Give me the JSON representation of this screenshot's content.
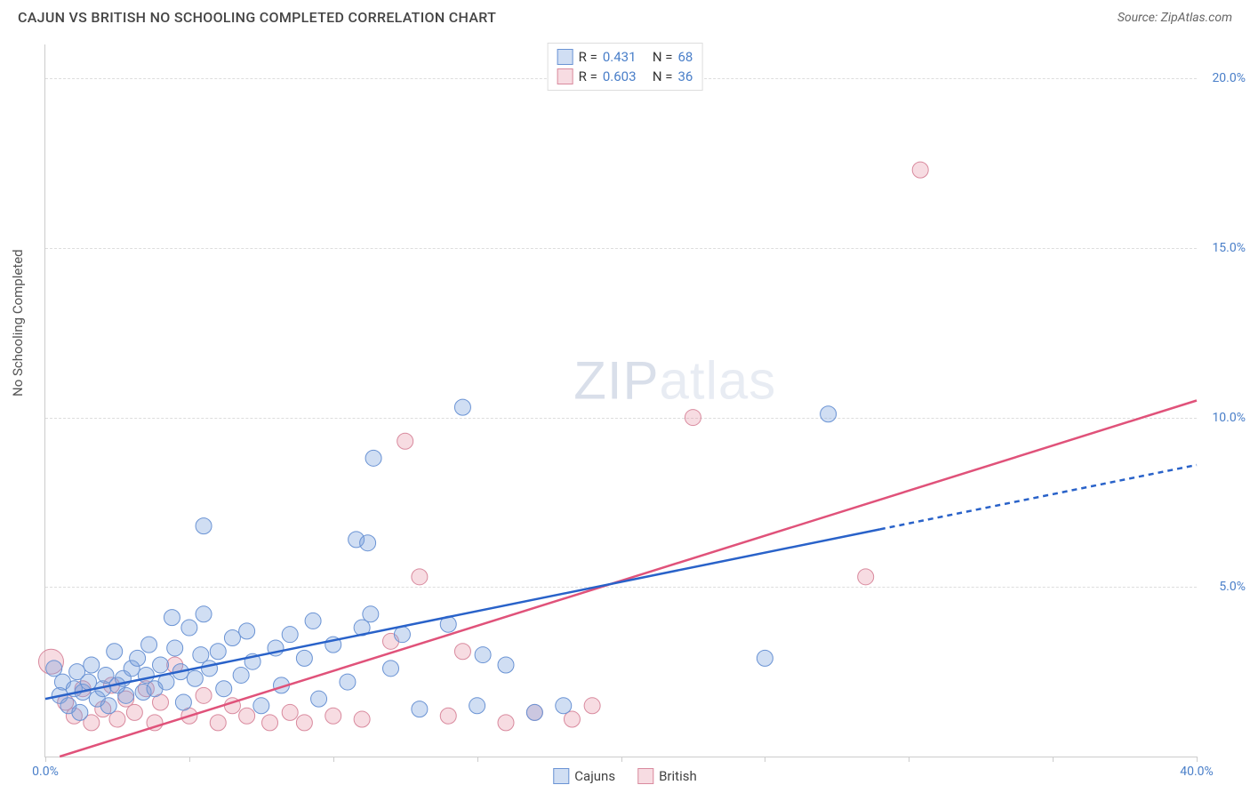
{
  "header": {
    "title": "CAJUN VS BRITISH NO SCHOOLING COMPLETED CORRELATION CHART",
    "source": "Source: ZipAtlas.com"
  },
  "chart": {
    "type": "scatter",
    "y_axis_title": "No Schooling Completed",
    "xlim": [
      0,
      40
    ],
    "ylim": [
      0,
      21
    ],
    "y_ticks": [
      5,
      10,
      15,
      20
    ],
    "y_tick_labels": [
      "5.0%",
      "10.0%",
      "15.0%",
      "20.0%"
    ],
    "x_ticks": [
      0,
      5,
      10,
      15,
      20,
      25,
      30,
      35,
      40
    ],
    "x_tick_labels": [
      "0.0%",
      "",
      "",
      "",
      "",
      "",
      "",
      "",
      "40.0%"
    ],
    "background_color": "#ffffff",
    "grid_color": "#dddddd",
    "axis_label_color": "#4a7fc9",
    "series": {
      "cajuns": {
        "label": "Cajuns",
        "marker_color_fill": "rgba(120,160,220,0.35)",
        "marker_color_stroke": "#6a93d4",
        "line_color": "#2962c9",
        "line_style_solid_to": 29,
        "line_style_dash_after": true,
        "trend": {
          "x1": 0,
          "y1": 1.7,
          "x2": 40,
          "y2": 8.6
        },
        "points": [
          [
            0.3,
            2.6
          ],
          [
            0.5,
            1.8
          ],
          [
            0.6,
            2.2
          ],
          [
            0.8,
            1.5
          ],
          [
            1.0,
            2.0
          ],
          [
            1.1,
            2.5
          ],
          [
            1.2,
            1.3
          ],
          [
            1.3,
            1.9
          ],
          [
            1.5,
            2.2
          ],
          [
            1.6,
            2.7
          ],
          [
            1.8,
            1.7
          ],
          [
            2.0,
            2.0
          ],
          [
            2.1,
            2.4
          ],
          [
            2.2,
            1.5
          ],
          [
            2.4,
            3.1
          ],
          [
            2.5,
            2.1
          ],
          [
            2.7,
            2.3
          ],
          [
            2.8,
            1.8
          ],
          [
            3.0,
            2.6
          ],
          [
            3.2,
            2.9
          ],
          [
            3.4,
            1.9
          ],
          [
            3.5,
            2.4
          ],
          [
            3.6,
            3.3
          ],
          [
            3.8,
            2.0
          ],
          [
            4.0,
            2.7
          ],
          [
            4.2,
            2.2
          ],
          [
            4.4,
            4.1
          ],
          [
            4.5,
            3.2
          ],
          [
            4.7,
            2.5
          ],
          [
            4.8,
            1.6
          ],
          [
            5.0,
            3.8
          ],
          [
            5.2,
            2.3
          ],
          [
            5.4,
            3.0
          ],
          [
            5.5,
            4.2
          ],
          [
            5.5,
            6.8
          ],
          [
            5.7,
            2.6
          ],
          [
            6.0,
            3.1
          ],
          [
            6.2,
            2.0
          ],
          [
            6.5,
            3.5
          ],
          [
            6.8,
            2.4
          ],
          [
            7.0,
            3.7
          ],
          [
            7.2,
            2.8
          ],
          [
            7.5,
            1.5
          ],
          [
            8.0,
            3.2
          ],
          [
            8.2,
            2.1
          ],
          [
            8.5,
            3.6
          ],
          [
            9.0,
            2.9
          ],
          [
            9.3,
            4.0
          ],
          [
            9.5,
            1.7
          ],
          [
            10.0,
            3.3
          ],
          [
            10.5,
            2.2
          ],
          [
            11.0,
            3.8
          ],
          [
            11.3,
            4.2
          ],
          [
            11.4,
            8.8
          ],
          [
            10.8,
            6.4
          ],
          [
            11.2,
            6.3
          ],
          [
            12.0,
            2.6
          ],
          [
            12.4,
            3.6
          ],
          [
            13.0,
            1.4
          ],
          [
            14.0,
            3.9
          ],
          [
            14.5,
            10.3
          ],
          [
            15.0,
            1.5
          ],
          [
            15.2,
            3.0
          ],
          [
            16.0,
            2.7
          ],
          [
            17.0,
            1.3
          ],
          [
            18.0,
            1.5
          ],
          [
            25.0,
            2.9
          ],
          [
            27.2,
            10.1
          ]
        ]
      },
      "british": {
        "label": "British",
        "marker_color_fill": "rgba(230,140,160,0.30)",
        "marker_color_stroke": "#d98a9e",
        "line_color": "#e0527a",
        "trend": {
          "x1": 0.5,
          "y1": 0.0,
          "x2": 40,
          "y2": 10.5
        },
        "points": [
          [
            0.2,
            2.8
          ],
          [
            0.7,
            1.6
          ],
          [
            1.0,
            1.2
          ],
          [
            1.3,
            2.0
          ],
          [
            1.6,
            1.0
          ],
          [
            2.0,
            1.4
          ],
          [
            2.3,
            2.1
          ],
          [
            2.5,
            1.1
          ],
          [
            2.8,
            1.7
          ],
          [
            3.1,
            1.3
          ],
          [
            3.5,
            2.0
          ],
          [
            3.8,
            1.0
          ],
          [
            4.0,
            1.6
          ],
          [
            4.5,
            2.7
          ],
          [
            5.0,
            1.2
          ],
          [
            5.5,
            1.8
          ],
          [
            6.0,
            1.0
          ],
          [
            6.5,
            1.5
          ],
          [
            7.0,
            1.2
          ],
          [
            7.8,
            1.0
          ],
          [
            8.5,
            1.3
          ],
          [
            9.0,
            1.0
          ],
          [
            10.0,
            1.2
          ],
          [
            11.0,
            1.1
          ],
          [
            12.0,
            3.4
          ],
          [
            12.5,
            9.3
          ],
          [
            13.0,
            5.3
          ],
          [
            14.0,
            1.2
          ],
          [
            14.5,
            3.1
          ],
          [
            16.0,
            1.0
          ],
          [
            17.0,
            1.3
          ],
          [
            18.3,
            1.1
          ],
          [
            19.0,
            1.5
          ],
          [
            22.5,
            10.0
          ],
          [
            28.5,
            5.3
          ],
          [
            30.4,
            17.3
          ]
        ]
      }
    },
    "legend_top": {
      "rows": [
        {
          "swatch_fill": "rgba(120,160,220,0.35)",
          "swatch_stroke": "#6a93d4",
          "r_label": "R =",
          "r_value": "0.431",
          "n_label": "N =",
          "n_value": "68"
        },
        {
          "swatch_fill": "rgba(230,140,160,0.30)",
          "swatch_stroke": "#d98a9e",
          "r_label": "R =",
          "r_value": "0.603",
          "n_label": "N =",
          "n_value": "36"
        }
      ]
    },
    "legend_bottom": [
      {
        "swatch_fill": "rgba(120,160,220,0.35)",
        "swatch_stroke": "#6a93d4",
        "label": "Cajuns"
      },
      {
        "swatch_fill": "rgba(230,140,160,0.30)",
        "swatch_stroke": "#d98a9e",
        "label": "British"
      }
    ],
    "watermark": {
      "bold": "ZIP",
      "light": "atlas"
    }
  }
}
